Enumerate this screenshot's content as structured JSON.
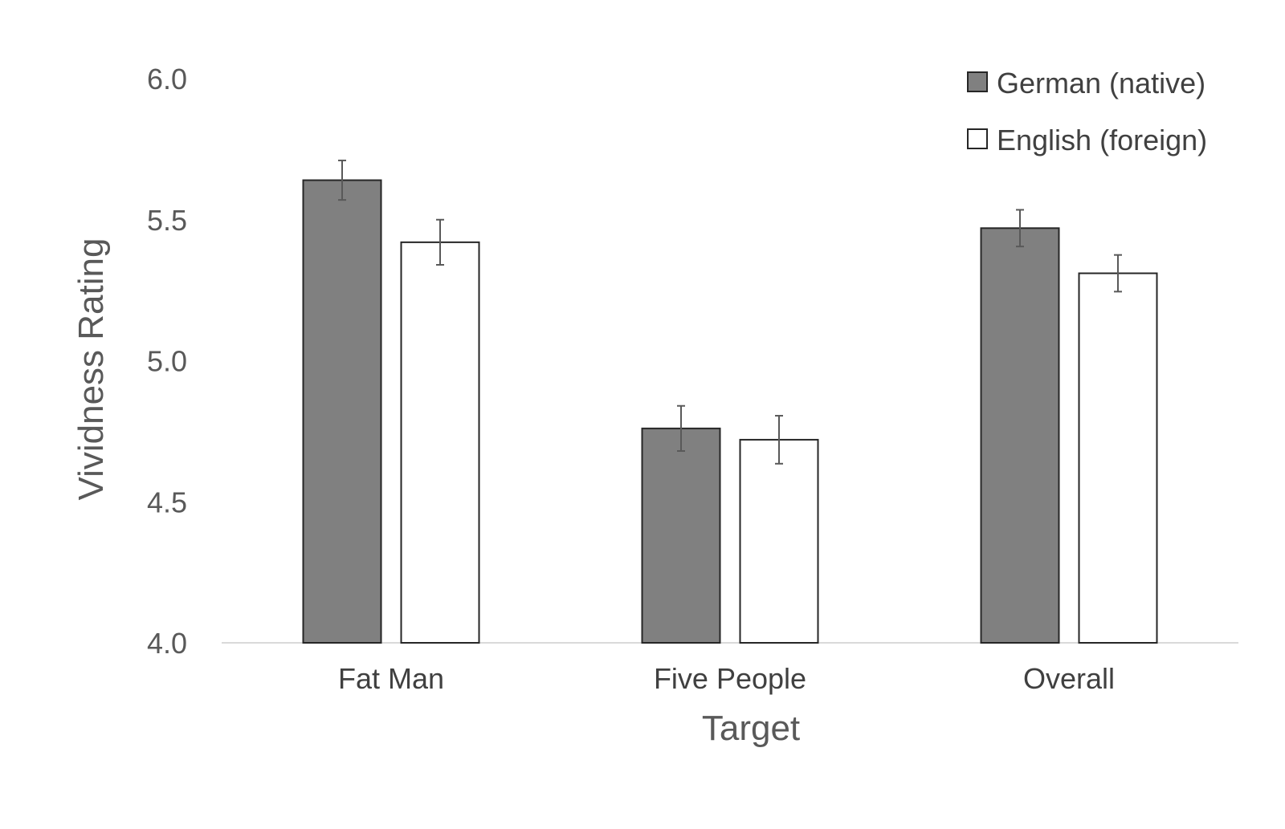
{
  "chart_data": {
    "type": "bar",
    "categories": [
      "Fat Man",
      "Five People",
      "Overall"
    ],
    "series": [
      {
        "name": "German (native)",
        "values": [
          5.64,
          4.76,
          5.47
        ],
        "errors": [
          0.07,
          0.08,
          0.065
        ],
        "color": "#808080"
      },
      {
        "name": "English (foreign)",
        "values": [
          5.42,
          4.72,
          5.31
        ],
        "errors": [
          0.08,
          0.085,
          0.065
        ],
        "color": "#ffffff"
      }
    ],
    "xlabel": "Target",
    "ylabel": "Vividness Rating",
    "ylim": [
      4.0,
      6.0
    ],
    "yticks": [
      "4.0",
      "4.5",
      "5.0",
      "5.5",
      "6.0"
    ],
    "grid": false,
    "legend_position": "top-right"
  }
}
